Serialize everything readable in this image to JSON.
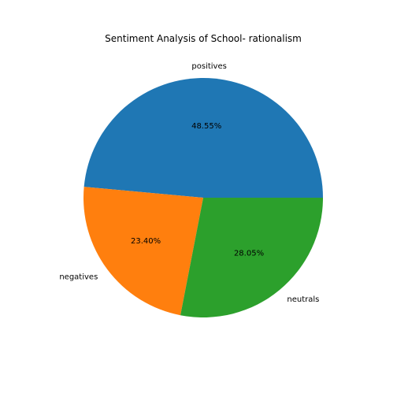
{
  "chart_data": {
    "type": "pie",
    "title": "Sentiment Analysis of School- rationalism",
    "labels": [
      "positives",
      "negatives",
      "neutrals"
    ],
    "values": [
      48.55,
      23.4,
      28.05
    ],
    "percent_labels": [
      "48.55%",
      "23.40%",
      "28.05%"
    ],
    "colors": [
      "#1f77b4",
      "#ff7f0e",
      "#2ca02c"
    ],
    "start_angle_deg": 0,
    "direction": "counterclockwise",
    "legend": "none"
  }
}
